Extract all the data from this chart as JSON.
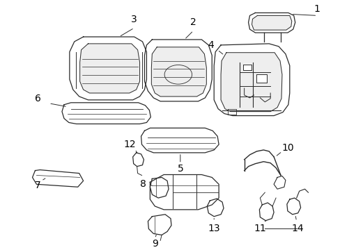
{
  "background_color": "#ffffff",
  "line_color": "#2a2a2a",
  "text_color": "#000000",
  "figsize": [
    4.89,
    3.6
  ],
  "dpi": 100,
  "label_fs": 10,
  "lw": 0.9
}
